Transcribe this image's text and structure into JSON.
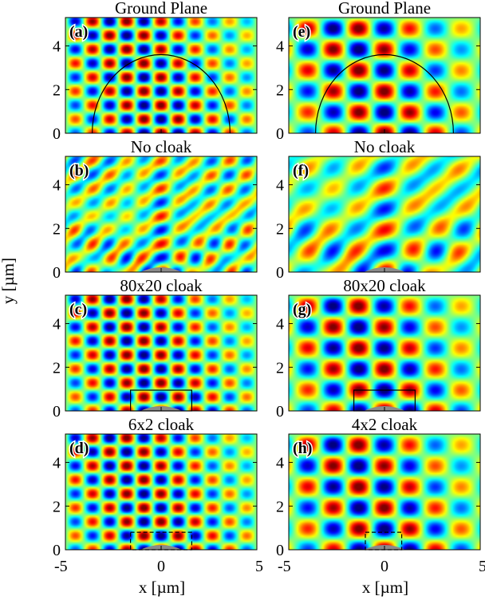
{
  "figure": {
    "y_axis_label": "y [µm]",
    "x_axis_label": "x [µm]",
    "y_ticks": [
      "0",
      "2",
      "4"
    ],
    "x_ticks_left": [
      "-5",
      "0",
      "5"
    ],
    "x_ticks_right": [
      "-5",
      "0",
      "5"
    ]
  },
  "panels": [
    {
      "letter": "(a)",
      "title": "Ground Plane",
      "col": 0,
      "row": 0,
      "k": 3.0,
      "kind": "ground",
      "cloak": null
    },
    {
      "letter": "(b)",
      "title": "No cloak",
      "col": 0,
      "row": 1,
      "k": 3.0,
      "kind": "bump",
      "cloak": null
    },
    {
      "letter": "(c)",
      "title": "80x20 cloak",
      "col": 0,
      "row": 2,
      "k": 3.0,
      "kind": "cloak",
      "cloak": "80x20"
    },
    {
      "letter": "(d)",
      "title": "6x2 cloak",
      "col": 0,
      "row": 3,
      "k": 3.0,
      "kind": "cloak",
      "cloak": "6x2"
    },
    {
      "letter": "(e)",
      "title": "Ground Plane",
      "col": 1,
      "row": 0,
      "k": 2.0,
      "kind": "ground",
      "cloak": null
    },
    {
      "letter": "(f)",
      "title": "No cloak",
      "col": 1,
      "row": 1,
      "k": 2.0,
      "kind": "bump",
      "cloak": null
    },
    {
      "letter": "(g)",
      "title": "80x20 cloak",
      "col": 1,
      "row": 2,
      "k": 2.0,
      "kind": "cloak",
      "cloak": "80x20"
    },
    {
      "letter": "(h)",
      "title": "4x2 cloak",
      "col": 1,
      "row": 3,
      "k": 2.0,
      "kind": "cloak",
      "cloak": "4x2"
    }
  ]
}
